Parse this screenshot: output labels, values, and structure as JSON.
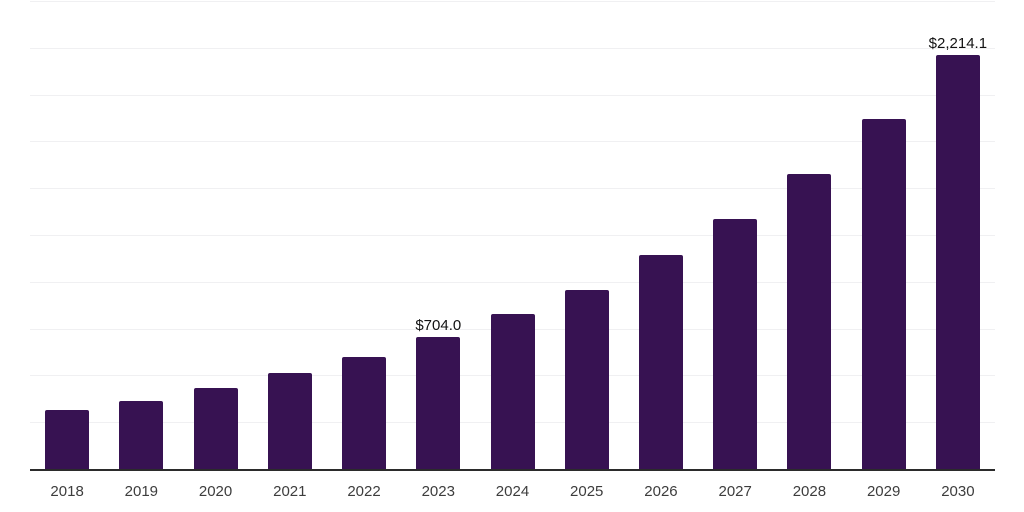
{
  "chart_data": {
    "type": "bar",
    "title": "",
    "xlabel": "",
    "ylabel": "",
    "categories": [
      "2018",
      "2019",
      "2020",
      "2021",
      "2022",
      "2023",
      "2024",
      "2025",
      "2026",
      "2027",
      "2028",
      "2029",
      "2030"
    ],
    "values": [
      315,
      363,
      435,
      514,
      598,
      704.0,
      827,
      958,
      1141,
      1337,
      1577,
      1870,
      2214.1
    ],
    "point_labels": [
      "",
      "",
      "",
      "",
      "",
      "$704.0",
      "",
      "",
      "",
      "",
      "",
      "",
      "$2,214.1"
    ],
    "ylim": [
      0,
      2500
    ],
    "grid_step": 250,
    "grid": "horizontal",
    "y_tick_labels_shown": false,
    "legend_position": "none",
    "colors": {
      "bar": "#371252",
      "axis": "#2b2b2b",
      "gridline": "#f0f0f2",
      "tick_label": "#3d3d3d",
      "value_label": "#121212",
      "background": "#ffffff"
    }
  }
}
